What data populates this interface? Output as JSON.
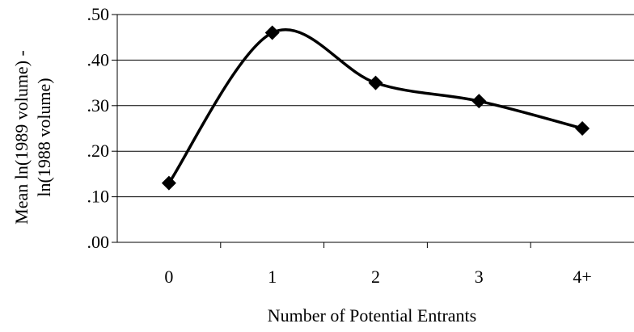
{
  "chart_data": {
    "type": "line",
    "smooth": true,
    "categories": [
      "0",
      "1",
      "2",
      "3",
      "4+"
    ],
    "series": [
      {
        "values": [
          0.13,
          0.46,
          0.35,
          0.31,
          0.25
        ],
        "marker": "diamond",
        "color": "#000000"
      }
    ],
    "title": "",
    "xlabel": "Number of Potential Entrants",
    "ylabel_lines": [
      "Mean ln(1989 volume) -",
      "ln(1988 volume)"
    ],
    "yticks": [
      {
        "value": 0.0,
        "label": ".00"
      },
      {
        "value": 0.1,
        "label": ".10"
      },
      {
        "value": 0.2,
        "label": ".20"
      },
      {
        "value": 0.3,
        "label": ".30"
      },
      {
        "value": 0.4,
        "label": ".40"
      },
      {
        "value": 0.5,
        "label": ".50"
      }
    ],
    "ylim": [
      0,
      0.5
    ],
    "grid": "horizontal",
    "legend": "none"
  }
}
